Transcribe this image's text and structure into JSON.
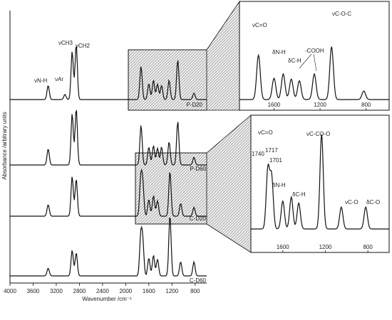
{
  "chart_data": {
    "type": "line",
    "title": "",
    "xlabel": "Wavenumber /cm⁻¹",
    "ylabel": "Absorbance /arbitrary units",
    "xlim": [
      4000,
      600
    ],
    "x_ticks": [
      4000,
      3600,
      3200,
      2800,
      2400,
      2000,
      1600,
      1200,
      800
    ],
    "series": [
      {
        "name": "P-D20",
        "peaks": [
          [
            3340,
            0.22
          ],
          [
            3050,
            0.08
          ],
          [
            2925,
            0.75
          ],
          [
            2855,
            0.86
          ],
          [
            1735,
            0.52
          ],
          [
            1600,
            0.25
          ],
          [
            1520,
            0.3
          ],
          [
            1450,
            0.24
          ],
          [
            1380,
            0.22
          ],
          [
            1250,
            0.3
          ],
          [
            1100,
            0.62
          ],
          [
            820,
            0.1
          ]
        ]
      },
      {
        "name": "P-D60",
        "peaks": [
          [
            3340,
            0.25
          ],
          [
            2925,
            0.8
          ],
          [
            2855,
            0.88
          ],
          [
            1735,
            0.62
          ],
          [
            1600,
            0.28
          ],
          [
            1520,
            0.3
          ],
          [
            1450,
            0.26
          ],
          [
            1380,
            0.28
          ],
          [
            1250,
            0.36
          ],
          [
            1100,
            0.68
          ],
          [
            820,
            0.12
          ]
        ]
      },
      {
        "name": "C-D20",
        "peaks": [
          [
            3340,
            0.18
          ],
          [
            2925,
            0.62
          ],
          [
            2855,
            0.58
          ],
          [
            1740,
            0.56
          ],
          [
            1705,
            0.5
          ],
          [
            1600,
            0.26
          ],
          [
            1520,
            0.32
          ],
          [
            1450,
            0.24
          ],
          [
            1235,
            0.7
          ],
          [
            1050,
            0.2
          ],
          [
            820,
            0.14
          ]
        ]
      },
      {
        "name": "C-D60",
        "peaks": [
          [
            3340,
            0.12
          ],
          [
            2925,
            0.4
          ],
          [
            2855,
            0.36
          ],
          [
            1740,
            0.6
          ],
          [
            1705,
            0.52
          ],
          [
            1600,
            0.28
          ],
          [
            1520,
            0.32
          ],
          [
            1450,
            0.26
          ],
          [
            1235,
            0.95
          ],
          [
            1050,
            0.22
          ],
          [
            820,
            0.22
          ]
        ]
      }
    ],
    "main_annotations": [
      "νN-H",
      "νAr",
      "νCH3",
      "νCH2"
    ],
    "inset_top": {
      "x_ticks": [
        1600,
        1200,
        800
      ],
      "annotations": [
        "νC=O",
        "δN-H",
        "δC-H",
        "-COOH",
        "νC-O-C"
      ]
    },
    "inset_bottom": {
      "x_ticks": [
        1600,
        1200,
        800
      ],
      "annotations": [
        "νC=O",
        "1740",
        "1717",
        "1701",
        "δN-H",
        "δC-H",
        "νC-CO-O",
        "νC-O",
        "δC-O"
      ]
    },
    "grid": false,
    "legend": "none"
  }
}
